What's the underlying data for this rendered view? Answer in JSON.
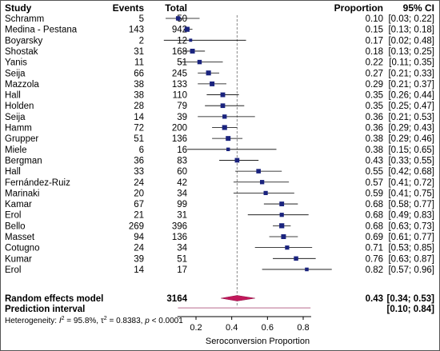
{
  "headers": {
    "study": "Study",
    "events": "Events",
    "total": "Total",
    "proportion": "Proportion",
    "ci": "95% CI"
  },
  "chart_data": {
    "type": "forest",
    "xlabel": "Seroconversion Proportion",
    "xlim": [
      0.05,
      0.95
    ],
    "xticks": [
      0.2,
      0.4,
      0.6,
      0.8
    ],
    "tick_labels": [
      "0.2",
      "0.4",
      "0.6",
      "0.8"
    ],
    "colors": {
      "square": "#1a237e",
      "diamond": "#c2185b",
      "reference_line": "#888888"
    },
    "studies": [
      {
        "study": "Schramm",
        "events": "5",
        "total": "50",
        "proportion": 0.1,
        "lower": 0.03,
        "upper": 0.22,
        "proportion_text": "0.10",
        "ci_text": "[0.03; 0.22]",
        "weight": 4.2
      },
      {
        "study": "Medina - Pestana",
        "events": "143",
        "total": "942",
        "proportion": 0.15,
        "lower": 0.13,
        "upper": 0.18,
        "proportion_text": "0.15",
        "ci_text": "[0.13; 0.18]",
        "weight": 4.8
      },
      {
        "study": "Boyarsky",
        "events": "2",
        "total": "12",
        "proportion": 0.17,
        "lower": 0.02,
        "upper": 0.48,
        "proportion_text": "0.17",
        "ci_text": "[0.02; 0.48]",
        "weight": 3.0
      },
      {
        "study": "Shostak",
        "events": "31",
        "total": "168",
        "proportion": 0.18,
        "lower": 0.13,
        "upper": 0.25,
        "proportion_text": "0.18",
        "ci_text": "[0.13; 0.25]",
        "weight": 4.6
      },
      {
        "study": "Yanis",
        "events": "11",
        "total": "51",
        "proportion": 0.22,
        "lower": 0.11,
        "upper": 0.35,
        "proportion_text": "0.22",
        "ci_text": "[0.11; 0.35]",
        "weight": 4.2
      },
      {
        "study": "Seija",
        "events": "66",
        "total": "245",
        "proportion": 0.27,
        "lower": 0.21,
        "upper": 0.33,
        "proportion_text": "0.27",
        "ci_text": "[0.21; 0.33]",
        "weight": 4.7
      },
      {
        "study": "Mazzola",
        "events": "38",
        "total": "133",
        "proportion": 0.29,
        "lower": 0.21,
        "upper": 0.37,
        "proportion_text": "0.29",
        "ci_text": "[0.21; 0.37]",
        "weight": 4.6
      },
      {
        "study": "Hall",
        "events": "38",
        "total": "110",
        "proportion": 0.35,
        "lower": 0.26,
        "upper": 0.44,
        "proportion_text": "0.35",
        "ci_text": "[0.26; 0.44]",
        "weight": 4.5
      },
      {
        "study": "Holden",
        "events": "28",
        "total": "79",
        "proportion": 0.35,
        "lower": 0.25,
        "upper": 0.47,
        "proportion_text": "0.35",
        "ci_text": "[0.25; 0.47]",
        "weight": 4.4
      },
      {
        "study": "Seija",
        "events": "14",
        "total": "39",
        "proportion": 0.36,
        "lower": 0.21,
        "upper": 0.53,
        "proportion_text": "0.36",
        "ci_text": "[0.21; 0.53]",
        "weight": 4.1
      },
      {
        "study": "Hamm",
        "events": "72",
        "total": "200",
        "proportion": 0.36,
        "lower": 0.29,
        "upper": 0.43,
        "proportion_text": "0.36",
        "ci_text": "[0.29; 0.43]",
        "weight": 4.7
      },
      {
        "study": "Grupper",
        "events": "51",
        "total": "136",
        "proportion": 0.38,
        "lower": 0.29,
        "upper": 0.46,
        "proportion_text": "0.38",
        "ci_text": "[0.29; 0.46]",
        "weight": 4.6
      },
      {
        "study": "Miele",
        "events": "6",
        "total": "16",
        "proportion": 0.38,
        "lower": 0.15,
        "upper": 0.65,
        "proportion_text": "0.38",
        "ci_text": "[0.15; 0.65]",
        "weight": 3.4
      },
      {
        "study": "Bergman",
        "events": "36",
        "total": "83",
        "proportion": 0.43,
        "lower": 0.33,
        "upper": 0.55,
        "proportion_text": "0.43",
        "ci_text": "[0.33; 0.55]",
        "weight": 4.4
      },
      {
        "study": "Hall",
        "events": "33",
        "total": "60",
        "proportion": 0.55,
        "lower": 0.42,
        "upper": 0.68,
        "proportion_text": "0.55",
        "ci_text": "[0.42; 0.68]",
        "weight": 4.3
      },
      {
        "study": "Fernández-Ruiz",
        "events": "24",
        "total": "42",
        "proportion": 0.57,
        "lower": 0.41,
        "upper": 0.72,
        "proportion_text": "0.57",
        "ci_text": "[0.41; 0.72]",
        "weight": 4.1
      },
      {
        "study": "Marinaki",
        "events": "20",
        "total": "34",
        "proportion": 0.59,
        "lower": 0.41,
        "upper": 0.75,
        "proportion_text": "0.59",
        "ci_text": "[0.41; 0.75]",
        "weight": 4.0
      },
      {
        "study": "Kamar",
        "events": "67",
        "total": "99",
        "proportion": 0.68,
        "lower": 0.58,
        "upper": 0.77,
        "proportion_text": "0.68",
        "ci_text": "[0.58; 0.77]",
        "weight": 4.5
      },
      {
        "study": "Erol",
        "events": "21",
        "total": "31",
        "proportion": 0.68,
        "lower": 0.49,
        "upper": 0.83,
        "proportion_text": "0.68",
        "ci_text": "[0.49; 0.83]",
        "weight": 4.0
      },
      {
        "study": "Bello",
        "events": "269",
        "total": "396",
        "proportion": 0.68,
        "lower": 0.63,
        "upper": 0.73,
        "proportion_text": "0.68",
        "ci_text": "[0.63; 0.73]",
        "weight": 4.8
      },
      {
        "study": "Masset",
        "events": "94",
        "total": "136",
        "proportion": 0.69,
        "lower": 0.61,
        "upper": 0.77,
        "proportion_text": "0.69",
        "ci_text": "[0.61; 0.77]",
        "weight": 4.6
      },
      {
        "study": "Cotugno",
        "events": "24",
        "total": "34",
        "proportion": 0.71,
        "lower": 0.53,
        "upper": 0.85,
        "proportion_text": "0.71",
        "ci_text": "[0.53; 0.85]",
        "weight": 4.0
      },
      {
        "study": "Kumar",
        "events": "39",
        "total": "51",
        "proportion": 0.76,
        "lower": 0.63,
        "upper": 0.87,
        "proportion_text": "0.76",
        "ci_text": "[0.63; 0.87]",
        "weight": 4.2
      },
      {
        "study": "Erol",
        "events": "14",
        "total": "17",
        "proportion": 0.82,
        "lower": 0.57,
        "upper": 0.96,
        "proportion_text": "0.82",
        "ci_text": "[0.57; 0.96]",
        "weight": 3.5
      }
    ],
    "summary": {
      "label": "Random effects model",
      "total": "3164",
      "estimate": 0.43,
      "lower": 0.34,
      "upper": 0.53,
      "estimate_text": "0.43",
      "ci_text": "[0.34; 0.53]"
    },
    "prediction": {
      "label": "Prediction interval",
      "lower": 0.1,
      "upper": 0.84,
      "ci_text": "[0.10; 0.84]"
    },
    "heterogeneity": {
      "prefix": "Heterogeneity: ",
      "i2_symbol": "I",
      "i2_value": " = 95.8%, ",
      "tau2_symbol": "τ",
      "tau2_value": " = 0.8383, ",
      "p_symbol": "p",
      "p_value": " < 0.0001"
    }
  }
}
